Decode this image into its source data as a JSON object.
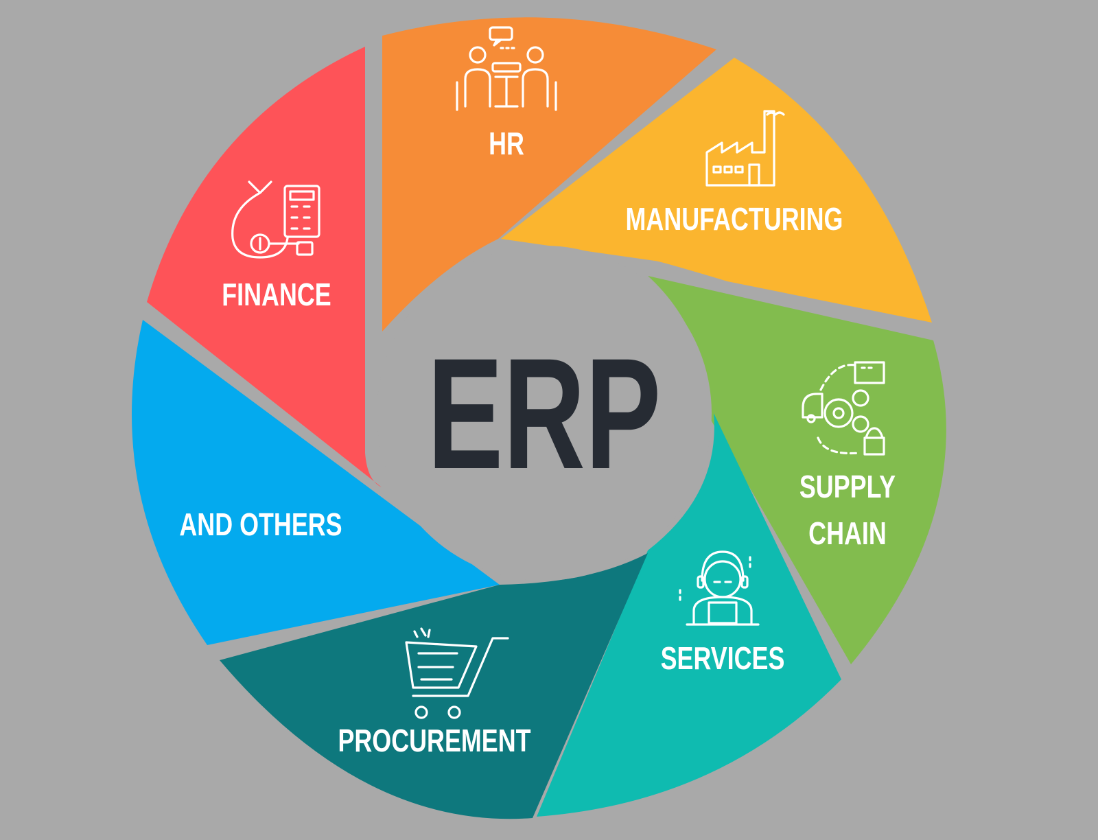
{
  "center": {
    "label": "ERP"
  },
  "segments": [
    {
      "id": "hr",
      "label": "HR",
      "color": "#f68c37",
      "icon": "meeting-icon"
    },
    {
      "id": "manufacturing",
      "label": "MANUFACTURING",
      "color": "#fbb52f",
      "icon": "factory-icon"
    },
    {
      "id": "supply_chain",
      "label_line1": "SUPPLY",
      "label_line2": "CHAIN",
      "color": "#82bc4e",
      "icon": "supply-chain-icon"
    },
    {
      "id": "services",
      "label": "SERVICES",
      "color": "#0fbbb0",
      "icon": "support-agent-icon"
    },
    {
      "id": "procurement",
      "label": "PROCUREMENT",
      "color": "#0e787d",
      "icon": "shopping-cart-icon"
    },
    {
      "id": "others",
      "label": "AND OTHERS",
      "color": "#04aaee",
      "icon": ""
    },
    {
      "id": "finance",
      "label": "FINANCE",
      "color": "#fe5358",
      "icon": "money-calculator-icon"
    }
  ],
  "colors": {
    "background": "#a9a9a9",
    "center_text": "#262b33",
    "label_text": "#ffffff"
  }
}
